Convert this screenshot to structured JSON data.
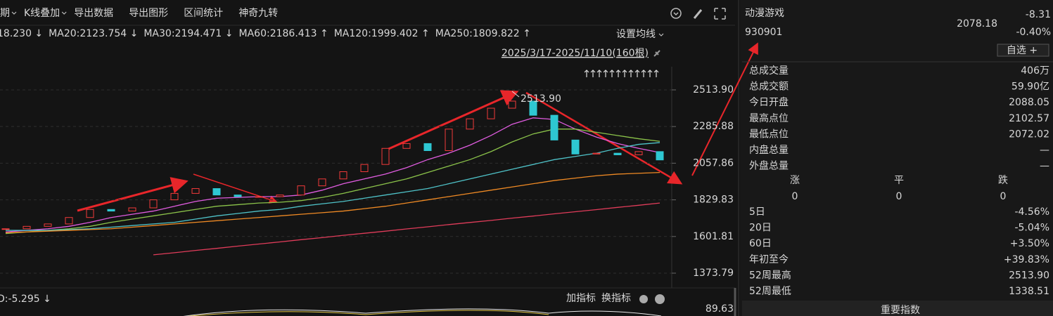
{
  "toolbar": {
    "items": [
      "周期",
      "K线叠加",
      "导出数据",
      "导出图形",
      "区间统计",
      "神奇九转"
    ]
  },
  "chart_data": {
    "type": "candlestick",
    "legend_prefix": "18.230 ↓",
    "range_label": "2025/3/17-2025/11/10(160根)",
    "settings_label": "设置均线",
    "peak_label": "2513.90",
    "up_color": "#f23a3a",
    "down_color": "#2ec7d2",
    "close": [
      1650,
      1665,
      1680,
      1720,
      1770,
      1760,
      1780,
      1830,
      1870,
      1900,
      1860,
      1850,
      1850,
      1860,
      1917,
      1960,
      2005,
      2050,
      2150,
      2180,
      2136,
      2270,
      2334,
      2400,
      2444,
      2356,
      2202,
      2115,
      2120,
      2110,
      2130,
      2078.18
    ],
    "series": [
      {
        "name": "MA20:2123.754 ↓",
        "color": "#e05ce0",
        "values": [
          1630,
          1640,
          1650,
          1665,
          1690,
          1720,
          1740,
          1760,
          1790,
          1820,
          1840,
          1845,
          1850,
          1850,
          1860,
          1890,
          1930,
          1960,
          1990,
          2030,
          2080,
          2120,
          2170,
          2230,
          2300,
          2340,
          2330,
          2270,
          2220,
          2180,
          2150,
          2124
        ]
      },
      {
        "name": "MA30:2194.471 ↓",
        "color": "#8bc34a",
        "values": [
          1620,
          1630,
          1640,
          1650,
          1665,
          1690,
          1710,
          1730,
          1750,
          1770,
          1790,
          1800,
          1810,
          1815,
          1825,
          1845,
          1870,
          1900,
          1930,
          1960,
          2000,
          2040,
          2080,
          2130,
          2190,
          2240,
          2270,
          2270,
          2250,
          2230,
          2210,
          2194
        ]
      },
      {
        "name": "MA60:2186.413 ↑",
        "color": "#4fc3c9",
        "values": [
          1640,
          1640,
          1640,
          1645,
          1650,
          1660,
          1670,
          1680,
          1690,
          1710,
          1730,
          1745,
          1760,
          1770,
          1790,
          1805,
          1820,
          1840,
          1860,
          1880,
          1900,
          1930,
          1960,
          1990,
          2020,
          2050,
          2080,
          2100,
          2120,
          2150,
          2175,
          2186
        ]
      },
      {
        "name": "MA120:1999.402 ↑",
        "color": "#f08a24",
        "values": [
          1625,
          1630,
          1635,
          1640,
          1645,
          1650,
          1660,
          1670,
          1680,
          1690,
          1700,
          1710,
          1720,
          1730,
          1740,
          1750,
          1760,
          1775,
          1790,
          1810,
          1830,
          1850,
          1870,
          1890,
          1910,
          1930,
          1950,
          1965,
          1980,
          1990,
          1995,
          2000
        ]
      },
      {
        "name": "MA250:1809.822 ↑",
        "color": "#e03c5a",
        "values": [
          null,
          null,
          null,
          null,
          null,
          null,
          null,
          1488,
          1501,
          1515,
          1528,
          1542,
          1555,
          1568,
          1582,
          1595,
          1609,
          1622,
          1635,
          1649,
          1662,
          1676,
          1689,
          1702,
          1716,
          1729,
          1743,
          1756,
          1769,
          1783,
          1796,
          1810
        ]
      }
    ],
    "ylim": [
      1282,
      2658
    ],
    "yticks": [
      {
        "value": 2513.9,
        "label": "2513.90"
      },
      2285.88,
      2057.86,
      1829.83,
      1601.81,
      1373.79
    ],
    "grid": true
  },
  "indicator_panel": {
    "legend": "D:-5.295 ↓",
    "buttons": [
      "加指标",
      "换指标"
    ],
    "ytick": "89.63"
  },
  "quote": {
    "name": "动漫游戏",
    "code": "930901",
    "price": "2078.18",
    "change": "-8.31",
    "change_pct": "-0.40%",
    "button": "自选 +",
    "rows": [
      {
        "label": "总成交量",
        "value": "406万",
        "color": "#e6e6e6"
      },
      {
        "label": "总成交额",
        "value": "59.90亿",
        "color": "#3fb6e0"
      },
      {
        "label": "今日开盘",
        "value": "2088.05",
        "color": "#f23a3a"
      },
      {
        "label": "最高点位",
        "value": "2102.57",
        "color": "#f23a3a"
      },
      {
        "label": "最低点位",
        "value": "2072.02",
        "color": "#2dbd5a"
      },
      {
        "label": "内盘总量",
        "value": "—",
        "color": "#e6e6e6"
      },
      {
        "label": "外盘总量",
        "value": "—",
        "color": "#e6e6e6"
      }
    ],
    "breadth": [
      {
        "label": "涨",
        "value": "0",
        "color": "#f23a3a"
      },
      {
        "label": "平",
        "value": "0",
        "color": "#2ec7d2"
      },
      {
        "label": "跌",
        "value": "0",
        "color": "#2dbd5a"
      }
    ],
    "performance": [
      {
        "label": "5日",
        "value": "-4.56%",
        "color": "#2dbd5a"
      },
      {
        "label": "20日",
        "value": "-5.04%",
        "color": "#2dbd5a"
      },
      {
        "label": "60日",
        "value": "+3.50%",
        "color": "#f23a3a"
      },
      {
        "label": "年初至今",
        "value": "+39.83%",
        "color": "#f23a3a"
      },
      {
        "label": "52周最高",
        "value": "2513.90",
        "color": "#f23a3a"
      },
      {
        "label": "52周最低",
        "value": "1338.51",
        "color": "#2dbd5a"
      }
    ],
    "footer": "重要指数"
  }
}
